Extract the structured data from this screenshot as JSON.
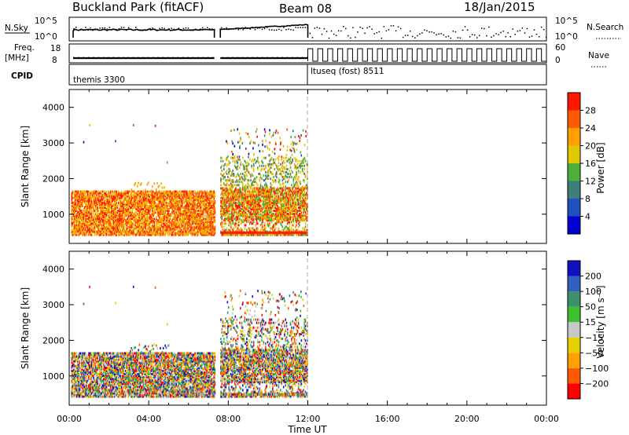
{
  "header": {
    "title": "Buckland Park (fitACF)",
    "beam": "Beam 08",
    "date": "18/Jan/2015"
  },
  "panels": {
    "nsky_label": "N.Sky",
    "nsearch_label": "N.Search",
    "freq_label_line1": "Freq.",
    "freq_label_line2": "[MHz]",
    "nave_label": "Nave",
    "cpid_label": "CPID",
    "cpid_first": "themis 3300",
    "cpid_second": "ltuseq (fost) 8511",
    "nsky_ticks": [
      "10^5",
      "10^0"
    ],
    "nsearch_ticks": [
      "10^5",
      "10^0"
    ],
    "freq_ticks": [
      "18",
      "8"
    ],
    "nave_ticks": [
      "60",
      "0"
    ]
  },
  "chart_data": [
    {
      "type": "heatmap",
      "name": "power",
      "xlabel": "Time UT",
      "ylabel": "Slant Range [km]",
      "xlim": [
        0,
        24
      ],
      "ylim": [
        180,
        4500
      ],
      "x_ticks": [
        "00:00",
        "04:00",
        "08:00",
        "12:00",
        "16:00",
        "20:00",
        "00:00"
      ],
      "y_ticks": [
        1000,
        2000,
        3000,
        4000
      ],
      "colorbar_label": "Power [dB]",
      "colorbar_ticks": [
        "4",
        "8",
        "12",
        "16",
        "20",
        "24",
        "28"
      ],
      "colorbar_range": [
        0,
        32
      ],
      "colors": [
        "#0000d0",
        "#2050c0",
        "#3d7f78",
        "#4caf3a",
        "#e2c800",
        "#ffa000",
        "#ff5a00",
        "#ff1800"
      ],
      "data_gap_hours": [
        7.35,
        7.55
      ],
      "data_end_hour": 12.0,
      "bands": [
        {
          "t0": 0.1,
          "t1": 7.3,
          "r0": 400,
          "r1": 1650,
          "level": 0.85
        },
        {
          "t0": 7.6,
          "t1": 12.0,
          "r0": 400,
          "r1": 1750,
          "level": 0.75
        },
        {
          "t0": 7.6,
          "t1": 12.0,
          "r0": 1750,
          "r1": 2500,
          "level": 0.5
        }
      ]
    },
    {
      "type": "heatmap",
      "name": "velocity",
      "xlabel": "Time UT",
      "ylabel": "Slant Range [km]",
      "xlim": [
        0,
        24
      ],
      "ylim": [
        180,
        4500
      ],
      "x_ticks": [
        "00:00",
        "04:00",
        "08:00",
        "12:00",
        "16:00",
        "20:00",
        "00:00"
      ],
      "y_ticks": [
        1000,
        2000,
        3000,
        4000
      ],
      "colorbar_label": "Velocity [m s⁻¹]",
      "colorbar_ticks": [
        "200",
        "100",
        "50",
        "15",
        "−15",
        "−50",
        "−100",
        "−200"
      ],
      "colors": [
        "#1010c0",
        "#3060c0",
        "#3d8f6f",
        "#3cc030",
        "#c8c8c8",
        "#e8d000",
        "#ffa000",
        "#ff5a00",
        "#ff0000"
      ]
    }
  ]
}
